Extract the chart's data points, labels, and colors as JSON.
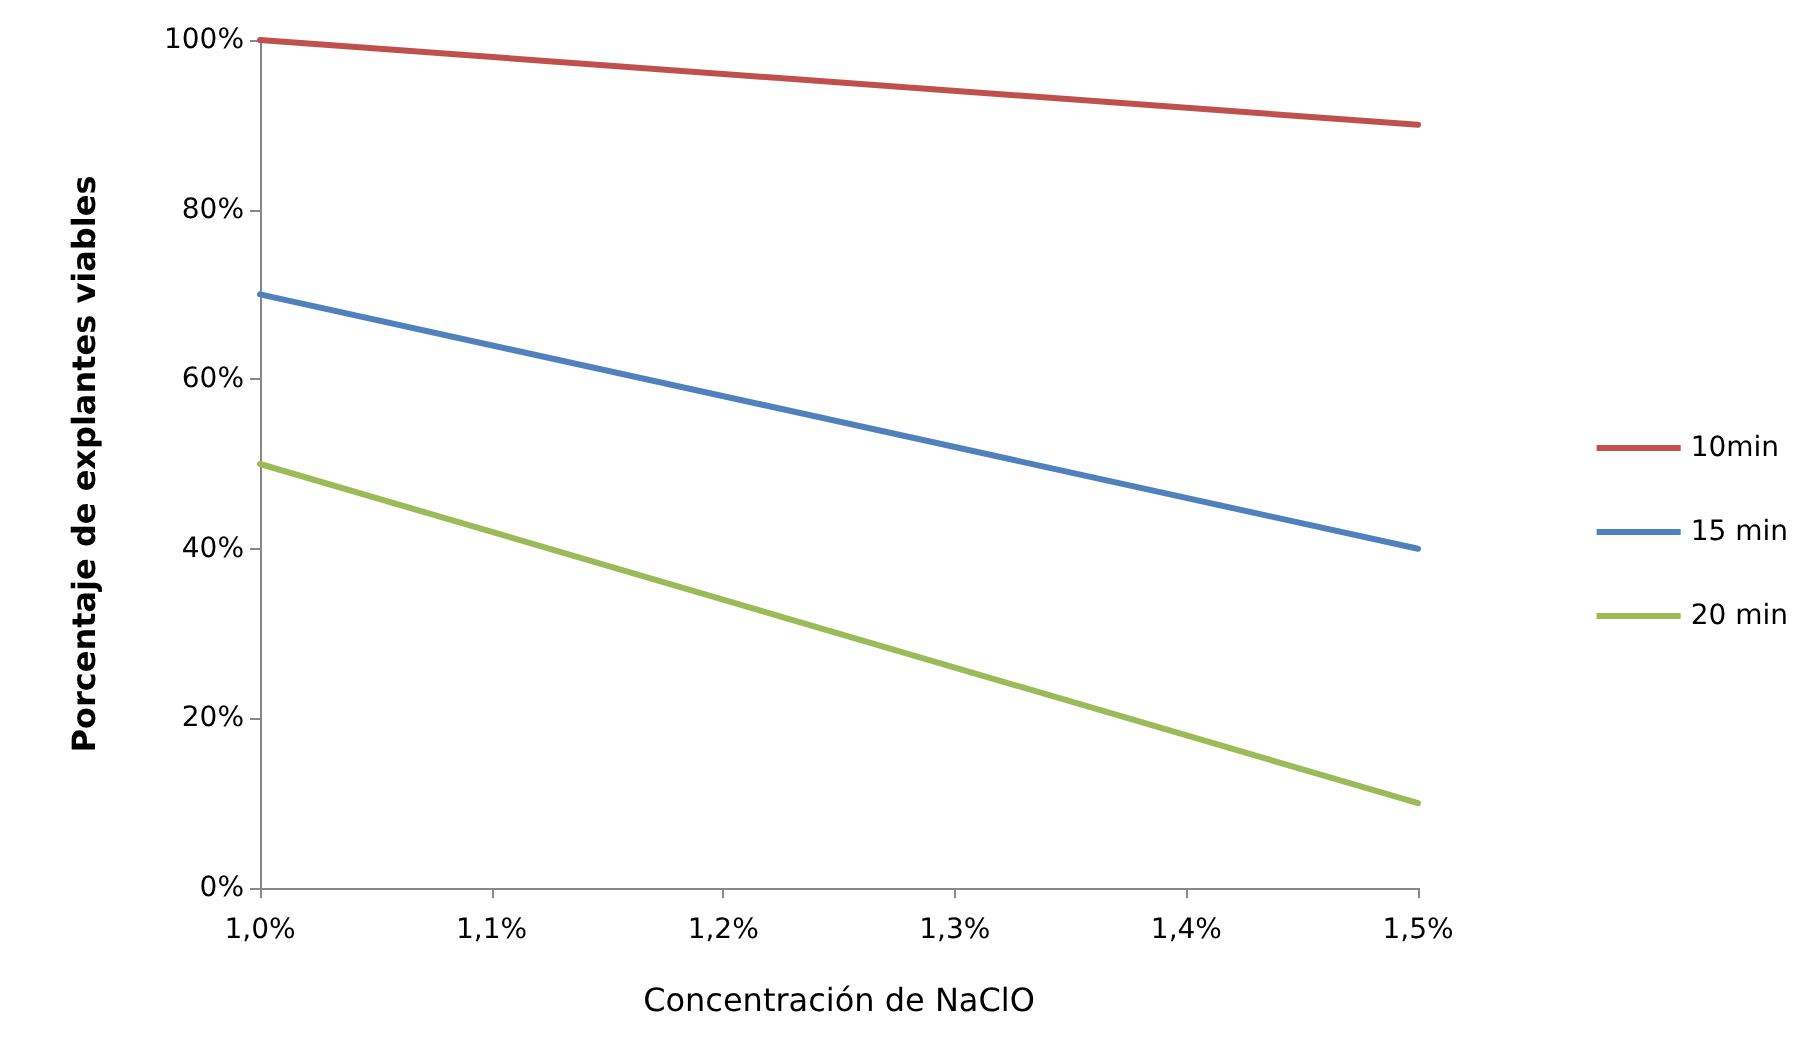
{
  "chart_data": {
    "type": "line",
    "xlabel": "Concentración de NaClO",
    "ylabel": "Porcentaje de explantes viables",
    "x": [
      1.0,
      1.5
    ],
    "series": [
      {
        "name": "10min",
        "color": "#c0504d",
        "values": [
          100,
          90
        ]
      },
      {
        "name": "15 min",
        "color": "#4f81bd",
        "values": [
          70,
          40
        ]
      },
      {
        "name": "20 min",
        "color": "#9bbb59",
        "values": [
          50,
          10
        ]
      }
    ],
    "xlim": [
      1.0,
      1.5
    ],
    "xticks": [
      {
        "value": 1.0,
        "label": "1,0%"
      },
      {
        "value": 1.1,
        "label": "1,1%"
      },
      {
        "value": 1.2,
        "label": "1,2%"
      },
      {
        "value": 1.3,
        "label": "1,3%"
      },
      {
        "value": 1.4,
        "label": "1,4%"
      },
      {
        "value": 1.5,
        "label": "1,5%"
      }
    ],
    "ylim": [
      0,
      100
    ],
    "yticks": [
      {
        "value": 0,
        "label": "0%"
      },
      {
        "value": 20,
        "label": "20%"
      },
      {
        "value": 40,
        "label": "40%"
      },
      {
        "value": 60,
        "label": "60%"
      },
      {
        "value": 80,
        "label": "80%"
      },
      {
        "value": 100,
        "label": "100%"
      }
    ],
    "grid": false,
    "legend": "right",
    "marker": "none",
    "line_style": "solid"
  }
}
